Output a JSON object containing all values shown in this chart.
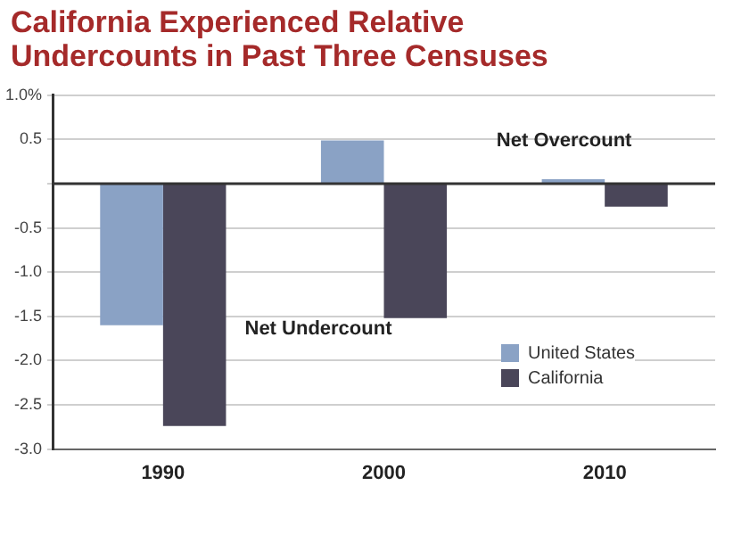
{
  "chart_data": {
    "type": "bar",
    "title": "California Experienced Relative\nUndercounts in Past Three Censuses",
    "categories": [
      "1990",
      "2000",
      "2010"
    ],
    "series": [
      {
        "name": "United States",
        "color": "#8aa2c5",
        "values": [
          -1.6,
          0.49,
          0.05
        ]
      },
      {
        "name": "California",
        "color": "#4a4659",
        "values": [
          -2.74,
          -1.52,
          -0.26
        ]
      }
    ],
    "ylim": [
      -3,
      1
    ],
    "yticks": [
      {
        "value": -3,
        "label": "-3.0"
      },
      -2.5,
      {
        "value": -2,
        "label": "-2.0"
      },
      -1.5,
      {
        "value": -1,
        "label": "-1.0"
      },
      -0.5,
      {
        "value": 0,
        "label": null
      },
      0.5,
      {
        "value": 1,
        "label": "1.0%"
      }
    ],
    "grid": "y",
    "legend": "bottom right",
    "annotations": [
      "Net Overcount",
      "Net Undercount"
    ]
  }
}
